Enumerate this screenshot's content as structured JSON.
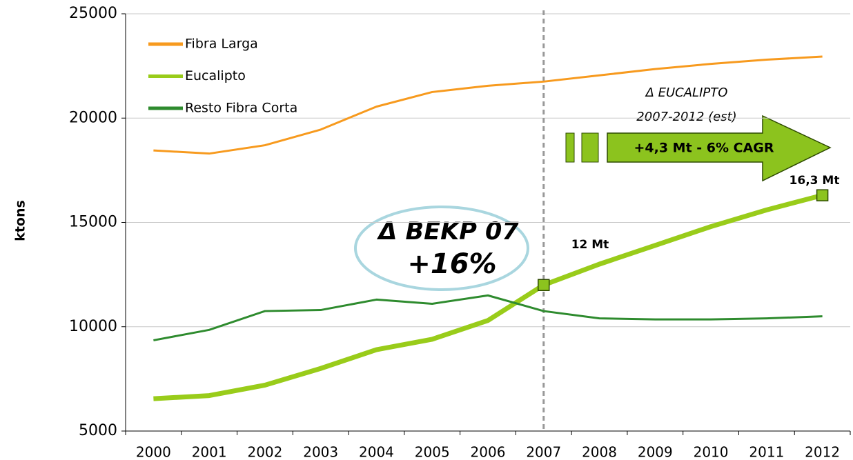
{
  "chart_data": {
    "type": "line",
    "y_label": "ktons",
    "categories": [
      "2000",
      "2001",
      "2002",
      "2003",
      "2004",
      "2005",
      "2006",
      "2007",
      "2008",
      "2009",
      "2010",
      "2011",
      "2012"
    ],
    "series": [
      {
        "name": "Fibra Larga",
        "color": "#f79a1e",
        "width": 3,
        "values": [
          18450,
          18300,
          18700,
          19450,
          20550,
          21250,
          21550,
          21750,
          22050,
          22350,
          22600,
          22800,
          22950
        ]
      },
      {
        "name": "Eucalipto",
        "color": "#99cc1a",
        "width": 7,
        "values": [
          6550,
          6700,
          7200,
          8000,
          8900,
          9400,
          10300,
          12000,
          13000,
          13900,
          14800,
          15600,
          16300
        ]
      },
      {
        "name": "Resto Fibra Corta",
        "color": "#2e8b2e",
        "width": 3,
        "values": [
          9350,
          9850,
          10750,
          10800,
          11300,
          11100,
          11500,
          10750,
          10400,
          10350,
          10350,
          10400,
          10500
        ]
      }
    ],
    "ylim": [
      5000,
      25000
    ],
    "yticks": [
      5000,
      10000,
      15000,
      20000,
      25000
    ],
    "grid": true,
    "annotations": {
      "bekp_title": "Δ BEKP 07",
      "bekp_value": "+16%",
      "label_2007": "12 Mt",
      "label_2012": "16,3 Mt",
      "arrow_title": "Δ EUCALIPTO",
      "arrow_period": "2007-2012 (est)",
      "arrow_text": "+4,3 Mt - 6% CAGR"
    }
  }
}
